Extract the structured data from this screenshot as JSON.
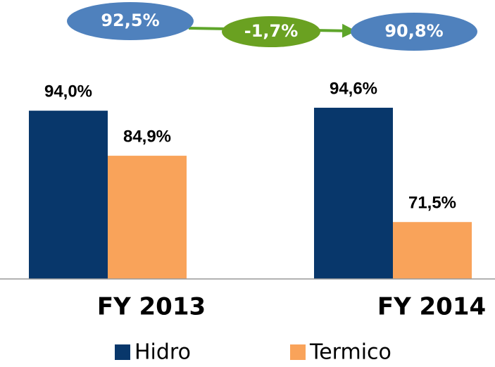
{
  "chart_data": {
    "type": "bar",
    "categories": [
      "FY 2013",
      "FY 2014"
    ],
    "series": [
      {
        "name": "Hidro",
        "color": "#08376b",
        "values": [
          94.0,
          94.6
        ],
        "value_labels": [
          "94,0%",
          "94,6%"
        ]
      },
      {
        "name": "Termico",
        "color": "#f9a35a",
        "values": [
          84.9,
          71.5
        ],
        "value_labels": [
          "84,9%",
          "71,5%"
        ]
      }
    ],
    "ylim": [
      60,
      100
    ],
    "annotations": [
      "92,5%",
      "-1,7%",
      "90,8%"
    ]
  }
}
